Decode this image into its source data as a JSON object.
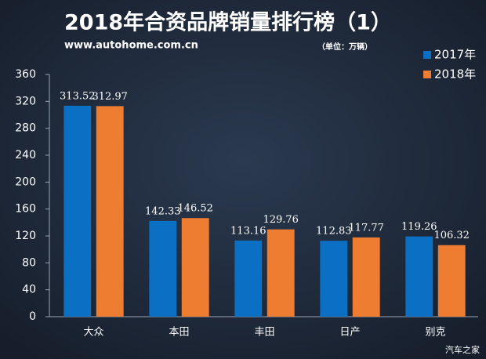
{
  "chart_data": {
    "type": "bar",
    "title": "2018年合资品牌销量排行榜（1）",
    "subtitle": "www.autohome.com.cn",
    "unit_note": "（单位：万辆）",
    "watermark": "汽车之家",
    "categories": [
      "大众",
      "本田",
      "丰田",
      "日产",
      "别克"
    ],
    "series": [
      {
        "name": "2017年",
        "color": "#0b6fc4",
        "values": [
          313.52,
          142.33,
          113.16,
          112.83,
          119.26
        ]
      },
      {
        "name": "2018年",
        "color": "#ee7d31",
        "values": [
          312.97,
          146.52,
          129.76,
          117.77,
          106.32
        ]
      }
    ],
    "ylim": [
      0,
      360
    ],
    "yticks": [
      0,
      40,
      80,
      120,
      160,
      200,
      240,
      280,
      320,
      360
    ],
    "grid": false,
    "legend": "top-right"
  }
}
